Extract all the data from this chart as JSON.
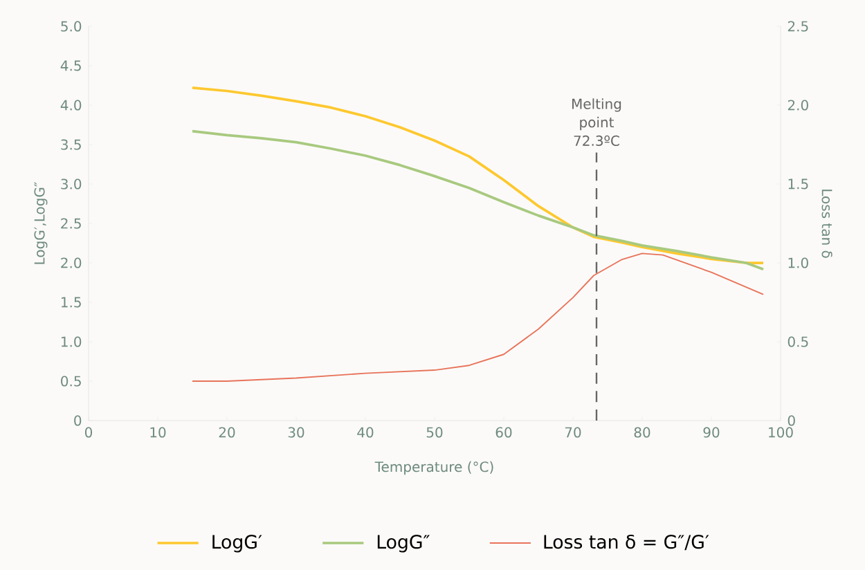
{
  "chart_data": {
    "type": "line",
    "xlabel": "Temperature (°C)",
    "ylabel": "LogG′,LogG″",
    "y2label": "Loss tan δ",
    "xlim": [
      0,
      100
    ],
    "xticks": [
      0,
      10,
      20,
      30,
      40,
      50,
      60,
      70,
      80,
      90,
      100
    ],
    "ylim": [
      0,
      5.0
    ],
    "yticks": [
      {
        "value": 0,
        "label": "0"
      },
      {
        "value": 0.5,
        "label": "0.5"
      },
      {
        "value": 1.0,
        "label": "1.0"
      },
      {
        "value": 1.5,
        "label": "1.5"
      },
      {
        "value": 2.0,
        "label": "2.0"
      },
      {
        "value": 2.5,
        "label": "2.5"
      },
      {
        "value": 3.0,
        "label": "3.0"
      },
      {
        "value": 3.5,
        "label": "3.5"
      },
      {
        "value": 4.0,
        "label": "4.0"
      },
      {
        "value": 4.5,
        "label": "4.5"
      },
      {
        "value": 5.0,
        "label": "5.0"
      }
    ],
    "y2lim": [
      0,
      2.5
    ],
    "y2ticks": [
      {
        "value": 0,
        "label": "0"
      },
      {
        "value": 0.5,
        "label": "0.5"
      },
      {
        "value": 1.0,
        "label": "1.0"
      },
      {
        "value": 1.5,
        "label": "1.5"
      },
      {
        "value": 2.0,
        "label": "2.0"
      },
      {
        "value": 2.5,
        "label": "2.5"
      }
    ],
    "grid": false,
    "legend": "bottom",
    "marker": "none",
    "line_style": "solid",
    "series": [
      {
        "name": "LogG′",
        "color": "#fdc82f",
        "x": [
          15,
          20,
          25,
          30,
          35,
          40,
          45,
          50,
          55,
          60,
          65,
          70,
          73,
          77,
          80,
          85,
          90,
          95,
          97.5
        ],
        "values": [
          4.22,
          4.18,
          4.12,
          4.05,
          3.97,
          3.86,
          3.72,
          3.55,
          3.35,
          3.05,
          2.72,
          2.45,
          2.33,
          2.26,
          2.2,
          2.12,
          2.05,
          2.0,
          2.0
        ]
      },
      {
        "name": "LogG″",
        "color": "#a8c97f",
        "x": [
          15,
          20,
          25,
          30,
          35,
          40,
          45,
          50,
          55,
          60,
          65,
          70,
          73,
          77,
          80,
          85,
          90,
          95,
          97.5
        ],
        "values": [
          3.67,
          3.62,
          3.58,
          3.53,
          3.45,
          3.36,
          3.24,
          3.1,
          2.95,
          2.77,
          2.6,
          2.45,
          2.35,
          2.28,
          2.22,
          2.15,
          2.07,
          2.0,
          1.92
        ]
      },
      {
        "name": "Loss tan δ = G″/G′",
        "color": "#e8735a",
        "axis": "y2",
        "x": [
          15,
          20,
          30,
          40,
          50,
          55,
          60,
          65,
          70,
          73,
          77,
          80,
          83,
          90,
          97.5
        ],
        "values": [
          0.25,
          0.25,
          0.27,
          0.3,
          0.32,
          0.35,
          0.42,
          0.58,
          0.78,
          0.92,
          1.02,
          1.06,
          1.05,
          0.94,
          0.8
        ]
      }
    ],
    "ref_lines": [
      {
        "axis": "x",
        "value": 73.4,
        "label": "Melting point 72.3ºC",
        "color": "#666666",
        "line_style": "dashed"
      }
    ]
  }
}
